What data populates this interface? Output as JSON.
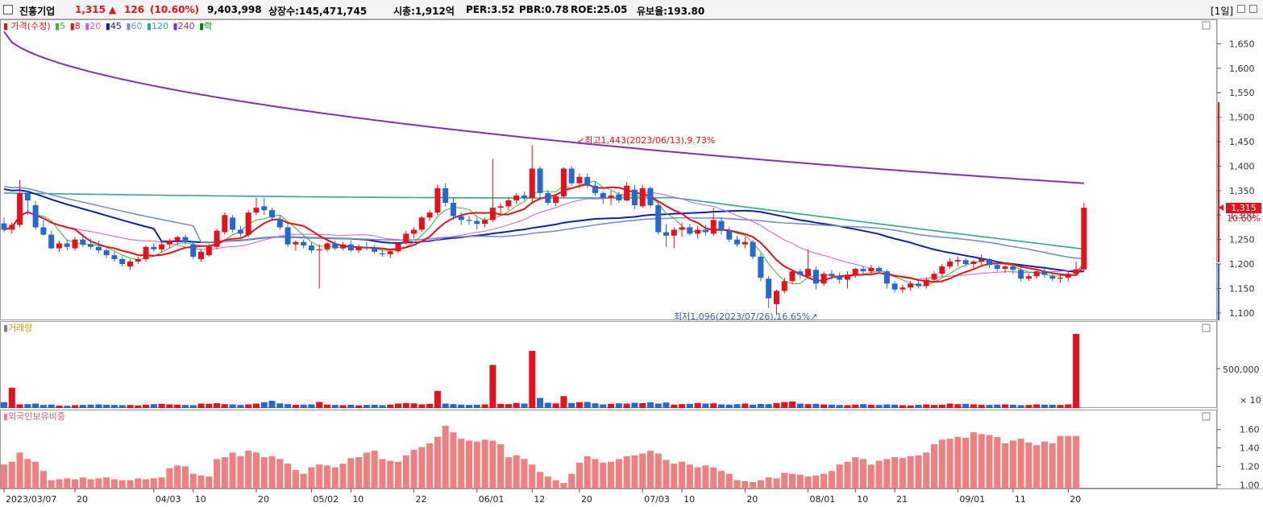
{
  "header": {
    "stock_name": "진흥기업",
    "price": "1,315",
    "change_arrow": "▲",
    "change": "126",
    "change_pct": "(10.60%)",
    "volume": "9,403,998",
    "listed_shares": "상장수:145,471,745",
    "market_cap": "시총:1,912억",
    "per": "PER:3.52",
    "pbr": "PBR:0.78",
    "roe": "ROE:25.05",
    "reserve_ratio": "유보율:193.80",
    "period": "[1일]"
  },
  "colors": {
    "up": "#e8101a",
    "down": "#2468d0",
    "ma5": "#33bb33",
    "ma8": "#e8101a",
    "ma20": "#d060c8",
    "ma45": "#1020b0",
    "ma60": "#7890c8",
    "ma120": "#30a890",
    "ma240": "#8030c0",
    "ratio": "#f08080",
    "label_green": "#008000"
  },
  "legend": {
    "price": "가격(수정)",
    "ma": [
      {
        "label": "5",
        "color": "#33bb33"
      },
      {
        "label": "8",
        "color": "#e8101a"
      },
      {
        "label": "20",
        "color": "#d060c8"
      },
      {
        "label": "45",
        "color": "#1020b0"
      },
      {
        "label": "60",
        "color": "#7890c8"
      },
      {
        "label": "120",
        "color": "#30a890"
      },
      {
        "label": "240",
        "color": "#8030c0"
      }
    ],
    "last": "락"
  },
  "price_axis": {
    "ticks": [
      "1,650",
      "1,600",
      "1,550",
      "1,500",
      "1,450",
      "1,400",
      "1,350",
      "1,300",
      "1,250",
      "1,200",
      "1,150",
      "1,100"
    ],
    "values": [
      1650,
      1600,
      1550,
      1500,
      1450,
      1400,
      1350,
      1300,
      1250,
      1200,
      1150,
      1100
    ]
  },
  "current_price_label": "1,315",
  "current_pct_label": "10.60%",
  "annotations": {
    "high": "최고1,443(2023/06/13),9.73%",
    "low": "최저1,096(2023/07/26),16.65%"
  },
  "volume_panel": {
    "title": "거래량",
    "ticks": [
      "500,000",
      "× 10"
    ]
  },
  "ratio_panel": {
    "title": "외국인보유비중",
    "ticks": [
      "1.60",
      "1.40",
      "1.20",
      "1.00"
    ],
    "values": [
      1.6,
      1.4,
      1.2,
      1.0
    ]
  },
  "x_axis_labels": [
    "2023/03/07",
    "20",
    "04/03",
    "10",
    "20",
    "05/02",
    "10",
    "22",
    "06/01",
    "12",
    "20",
    "07/03",
    "10",
    "20",
    "08/01",
    "10",
    "21",
    "09/01",
    "11",
    "20"
  ],
  "chart_data": {
    "type": "candlestick",
    "ylim": [
      1085,
      1700
    ],
    "x_label_indices": [
      0,
      9,
      19,
      24,
      32,
      39,
      44,
      52,
      60,
      67,
      73,
      81,
      86,
      94,
      102,
      108,
      113,
      121,
      128,
      135
    ],
    "candles": [
      [
        1283,
        1295,
        1265,
        1270
      ],
      [
        1270,
        1285,
        1262,
        1280
      ],
      [
        1280,
        1372,
        1275,
        1345
      ],
      [
        1345,
        1350,
        1300,
        1330
      ],
      [
        1320,
        1328,
        1270,
        1275
      ],
      [
        1275,
        1290,
        1258,
        1260
      ],
      [
        1260,
        1268,
        1230,
        1232
      ],
      [
        1232,
        1248,
        1225,
        1242
      ],
      [
        1242,
        1250,
        1228,
        1235
      ],
      [
        1232,
        1255,
        1228,
        1250
      ],
      [
        1250,
        1258,
        1235,
        1240
      ],
      [
        1240,
        1252,
        1230,
        1235
      ],
      [
        1235,
        1248,
        1222,
        1228
      ],
      [
        1228,
        1232,
        1212,
        1218
      ],
      [
        1218,
        1225,
        1205,
        1210
      ],
      [
        1210,
        1215,
        1195,
        1200
      ],
      [
        1195,
        1210,
        1188,
        1205
      ],
      [
        1205,
        1215,
        1200,
        1210
      ],
      [
        1210,
        1238,
        1205,
        1235
      ],
      [
        1235,
        1242,
        1225,
        1230
      ],
      [
        1230,
        1245,
        1225,
        1240
      ],
      [
        1240,
        1252,
        1232,
        1248
      ],
      [
        1248,
        1258,
        1240,
        1255
      ],
      [
        1255,
        1260,
        1240,
        1245
      ],
      [
        1240,
        1248,
        1210,
        1215
      ],
      [
        1210,
        1230,
        1205,
        1225
      ],
      [
        1218,
        1240,
        1215,
        1235
      ],
      [
        1235,
        1272,
        1230,
        1268
      ],
      [
        1265,
        1305,
        1260,
        1300
      ],
      [
        1295,
        1300,
        1265,
        1270
      ],
      [
        1270,
        1278,
        1255,
        1262
      ],
      [
        1260,
        1310,
        1255,
        1305
      ],
      [
        1305,
        1335,
        1300,
        1315
      ],
      [
        1318,
        1335,
        1300,
        1310
      ],
      [
        1310,
        1315,
        1290,
        1295
      ],
      [
        1292,
        1300,
        1270,
        1275
      ],
      [
        1275,
        1282,
        1235,
        1240
      ],
      [
        1240,
        1248,
        1228,
        1245
      ],
      [
        1245,
        1250,
        1232,
        1238
      ],
      [
        1238,
        1245,
        1222,
        1228
      ],
      [
        1228,
        1240,
        1150,
        1230
      ],
      [
        1230,
        1245,
        1225,
        1242
      ],
      [
        1242,
        1248,
        1228,
        1232
      ],
      [
        1232,
        1245,
        1228,
        1240
      ],
      [
        1240,
        1248,
        1225,
        1228
      ],
      [
        1228,
        1240,
        1222,
        1235
      ],
      [
        1235,
        1245,
        1228,
        1232
      ],
      [
        1232,
        1238,
        1222,
        1225
      ],
      [
        1222,
        1230,
        1215,
        1220
      ],
      [
        1220,
        1228,
        1212,
        1226
      ],
      [
        1226,
        1245,
        1222,
        1242
      ],
      [
        1242,
        1268,
        1240,
        1262
      ],
      [
        1262,
        1275,
        1252,
        1270
      ],
      [
        1270,
        1298,
        1265,
        1295
      ],
      [
        1295,
        1310,
        1288,
        1305
      ],
      [
        1305,
        1362,
        1300,
        1355
      ],
      [
        1355,
        1365,
        1318,
        1325
      ],
      [
        1325,
        1335,
        1290,
        1298
      ],
      [
        1298,
        1305,
        1280,
        1290
      ],
      [
        1290,
        1298,
        1280,
        1288
      ],
      [
        1288,
        1295,
        1270,
        1282
      ],
      [
        1282,
        1295,
        1275,
        1290
      ],
      [
        1290,
        1415,
        1285,
        1315
      ],
      [
        1315,
        1325,
        1300,
        1318
      ],
      [
        1318,
        1335,
        1310,
        1330
      ],
      [
        1330,
        1345,
        1322,
        1340
      ],
      [
        1340,
        1348,
        1330,
        1335
      ],
      [
        1335,
        1443,
        1325,
        1395
      ],
      [
        1395,
        1400,
        1335,
        1345
      ],
      [
        1345,
        1352,
        1320,
        1325
      ],
      [
        1325,
        1342,
        1318,
        1338
      ],
      [
        1338,
        1398,
        1335,
        1395
      ],
      [
        1395,
        1400,
        1360,
        1365
      ],
      [
        1365,
        1385,
        1355,
        1378
      ],
      [
        1378,
        1385,
        1355,
        1360
      ],
      [
        1360,
        1368,
        1340,
        1345
      ],
      [
        1345,
        1348,
        1322,
        1335
      ],
      [
        1335,
        1350,
        1320,
        1340
      ],
      [
        1342,
        1348,
        1325,
        1330
      ],
      [
        1330,
        1368,
        1328,
        1360
      ],
      [
        1352,
        1362,
        1312,
        1320
      ],
      [
        1318,
        1362,
        1315,
        1355
      ],
      [
        1355,
        1358,
        1315,
        1320
      ],
      [
        1320,
        1328,
        1260,
        1265
      ],
      [
        1265,
        1282,
        1235,
        1258
      ],
      [
        1258,
        1275,
        1232,
        1270
      ],
      [
        1270,
        1285,
        1255,
        1275
      ],
      [
        1275,
        1282,
        1258,
        1262
      ],
      [
        1262,
        1278,
        1252,
        1270
      ],
      [
        1270,
        1280,
        1258,
        1265
      ],
      [
        1262,
        1315,
        1258,
        1290
      ],
      [
        1288,
        1295,
        1260,
        1268
      ],
      [
        1268,
        1275,
        1245,
        1250
      ],
      [
        1250,
        1258,
        1235,
        1240
      ],
      [
        1240,
        1255,
        1232,
        1245
      ],
      [
        1245,
        1250,
        1210,
        1215
      ],
      [
        1215,
        1222,
        1165,
        1172
      ],
      [
        1170,
        1175,
        1110,
        1130
      ],
      [
        1118,
        1148,
        1096,
        1145
      ],
      [
        1145,
        1172,
        1140,
        1165
      ],
      [
        1165,
        1188,
        1160,
        1185
      ],
      [
        1185,
        1190,
        1170,
        1178
      ],
      [
        1175,
        1230,
        1170,
        1190
      ],
      [
        1188,
        1195,
        1148,
        1160
      ],
      [
        1160,
        1185,
        1155,
        1180
      ],
      [
        1180,
        1188,
        1168,
        1175
      ],
      [
        1175,
        1182,
        1160,
        1168
      ],
      [
        1168,
        1185,
        1150,
        1178
      ],
      [
        1178,
        1192,
        1172,
        1190
      ],
      [
        1190,
        1196,
        1180,
        1185
      ],
      [
        1185,
        1198,
        1180,
        1192
      ],
      [
        1192,
        1195,
        1180,
        1185
      ],
      [
        1185,
        1188,
        1150,
        1160
      ],
      [
        1160,
        1165,
        1142,
        1148
      ],
      [
        1148,
        1158,
        1140,
        1152
      ],
      [
        1152,
        1165,
        1145,
        1160
      ],
      [
        1160,
        1168,
        1150,
        1155
      ],
      [
        1155,
        1172,
        1150,
        1168
      ],
      [
        1168,
        1185,
        1162,
        1180
      ],
      [
        1180,
        1200,
        1175,
        1195
      ],
      [
        1195,
        1212,
        1190,
        1205
      ],
      [
        1205,
        1215,
        1195,
        1208
      ],
      [
        1208,
        1212,
        1195,
        1200
      ],
      [
        1200,
        1208,
        1190,
        1205
      ],
      [
        1205,
        1220,
        1198,
        1210
      ],
      [
        1210,
        1212,
        1192,
        1198
      ],
      [
        1198,
        1205,
        1185,
        1190
      ],
      [
        1190,
        1198,
        1182,
        1195
      ],
      [
        1195,
        1200,
        1180,
        1188
      ],
      [
        1188,
        1195,
        1165,
        1170
      ],
      [
        1170,
        1180,
        1165,
        1175
      ],
      [
        1175,
        1190,
        1170,
        1185
      ],
      [
        1185,
        1195,
        1172,
        1178
      ],
      [
        1175,
        1182,
        1165,
        1170
      ],
      [
        1170,
        1178,
        1162,
        1172
      ],
      [
        1172,
        1185,
        1165,
        1180
      ],
      [
        1180,
        1205,
        1175,
        1189
      ],
      [
        1189,
        1325,
        1185,
        1315
      ]
    ],
    "volume_x10": [
      72,
      252,
      45,
      48,
      55,
      38,
      42,
      30,
      28,
      35,
      38,
      42,
      45,
      40,
      38,
      35,
      38,
      32,
      40,
      48,
      52,
      45,
      42,
      38,
      35,
      55,
      52,
      60,
      48,
      45,
      38,
      45,
      55,
      72,
      90,
      58,
      48,
      40,
      42,
      45,
      75,
      42,
      38,
      35,
      40,
      32,
      38,
      40,
      35,
      42,
      55,
      62,
      58,
      45,
      52,
      212,
      55,
      48,
      42,
      38,
      40,
      45,
      535,
      52,
      48,
      62,
      55,
      710,
      125,
      65,
      58,
      148,
      62,
      72,
      75,
      58,
      45,
      52,
      58,
      55,
      65,
      60,
      72,
      55,
      68,
      42,
      48,
      52,
      62,
      55,
      58,
      45,
      42,
      48,
      55,
      42,
      50,
      48,
      62,
      75,
      80,
      55,
      48,
      52,
      45,
      42,
      38,
      35,
      42,
      48,
      40,
      38,
      45,
      42,
      35,
      32,
      40,
      45,
      38,
      42,
      55,
      48,
      52,
      45,
      40,
      38,
      42,
      45,
      40,
      35,
      38,
      45,
      42,
      40,
      38,
      45,
      920
    ],
    "foreign_ratio": [
      1.22,
      1.25,
      1.35,
      1.28,
      1.25,
      1.15,
      1.05,
      1.06,
      1.07,
      1.06,
      1.08,
      1.06,
      1.07,
      1.08,
      1.06,
      1.05,
      1.05,
      1.07,
      1.06,
      1.07,
      1.08,
      1.18,
      1.21,
      1.2,
      1.12,
      1.1,
      1.09,
      1.28,
      1.3,
      1.35,
      1.31,
      1.37,
      1.35,
      1.3,
      1.31,
      1.28,
      1.23,
      1.16,
      1.12,
      1.19,
      1.22,
      1.21,
      1.19,
      1.23,
      1.29,
      1.3,
      1.35,
      1.37,
      1.28,
      1.26,
      1.25,
      1.32,
      1.38,
      1.41,
      1.45,
      1.52,
      1.64,
      1.57,
      1.5,
      1.48,
      1.47,
      1.49,
      1.48,
      1.44,
      1.3,
      1.32,
      1.28,
      1.22,
      1.14,
      1.09,
      1.05,
      1.02,
      1.12,
      1.24,
      1.31,
      1.28,
      1.24,
      1.25,
      1.28,
      1.31,
      1.32,
      1.34,
      1.37,
      1.34,
      1.27,
      1.23,
      1.25,
      1.22,
      1.19,
      1.21,
      1.19,
      1.15,
      1.12,
      1.05,
      1.04,
      1.03,
      1.05,
      1.08,
      1.07,
      1.13,
      1.12,
      1.11,
      1.09,
      1.1,
      1.12,
      1.15,
      1.22,
      1.25,
      1.3,
      1.28,
      1.22,
      1.26,
      1.28,
      1.3,
      1.29,
      1.31,
      1.32,
      1.35,
      1.44,
      1.49,
      1.5,
      1.52,
      1.51,
      1.57,
      1.55,
      1.54,
      1.52,
      1.45,
      1.48,
      1.5,
      1.46,
      1.43,
      1.47,
      1.45,
      1.53,
      1.53,
      1.53
    ]
  }
}
